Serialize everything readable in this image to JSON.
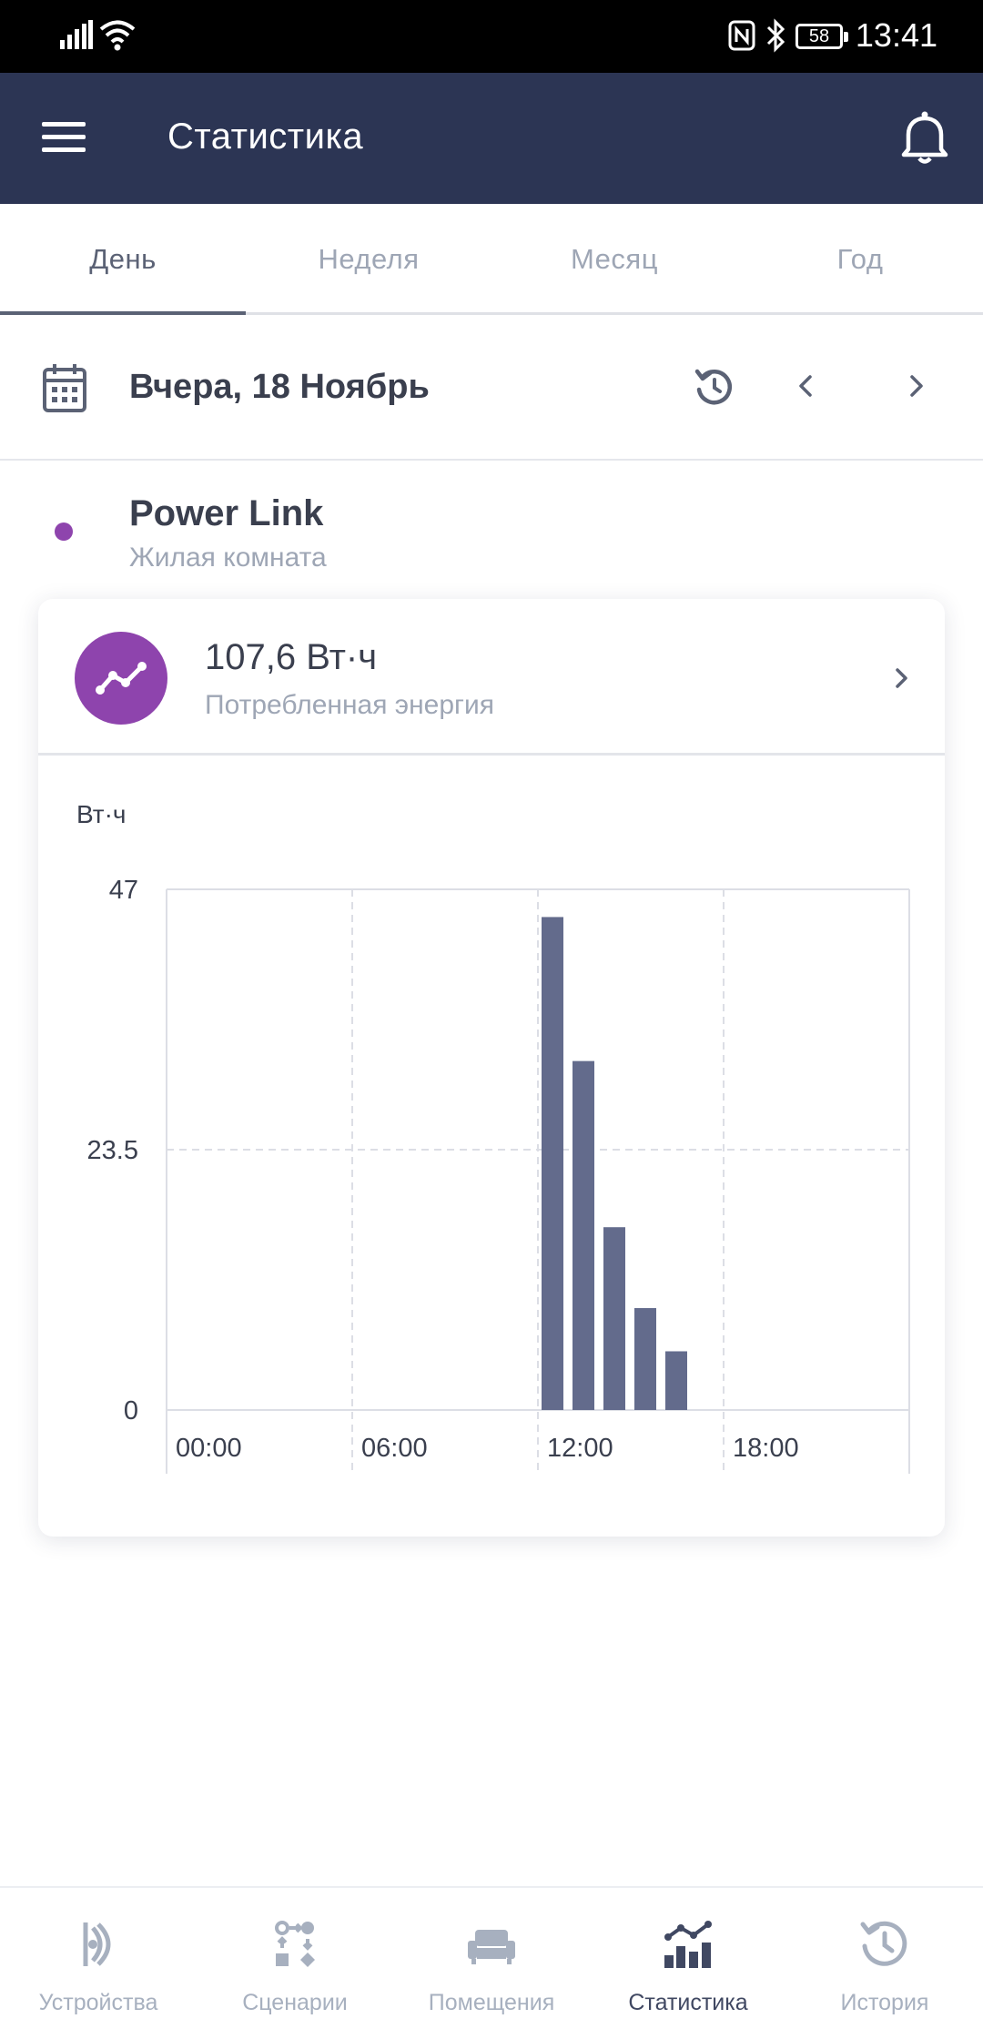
{
  "status_bar": {
    "time": "13:41",
    "battery": "58"
  },
  "app_bar": {
    "title": "Статистика"
  },
  "tabs": [
    {
      "label": "День",
      "active": true
    },
    {
      "label": "Неделя",
      "active": false
    },
    {
      "label": "Месяц",
      "active": false
    },
    {
      "label": "Год",
      "active": false
    }
  ],
  "date_nav": {
    "date": "Вчера, 18 Ноябрь"
  },
  "device": {
    "name": "Power Link",
    "room": "Жилая комната",
    "dot_color": "#8e44ad"
  },
  "summary": {
    "value": "107,6 Вт·ч",
    "caption": "Потребленная энергия",
    "icon": "trend-line-icon",
    "icon_bg": "#8e44ad"
  },
  "chart_data": {
    "type": "bar",
    "ylabel": "Вт·ч",
    "ylim": [
      0,
      47
    ],
    "yticks": [
      "47",
      "23.5",
      "0"
    ],
    "xticks": [
      "00:00",
      "06:00",
      "12:00",
      "18:00"
    ],
    "x": [
      "12:00",
      "13:00",
      "14:00",
      "15:00",
      "16:00"
    ],
    "values": [
      44.5,
      31.5,
      16.5,
      9.2,
      5.3
    ],
    "bar_color": "#636b8c",
    "grid": true
  },
  "bottom_nav": [
    {
      "label": "Устройства",
      "icon": "devices-icon",
      "active": false
    },
    {
      "label": "Сценарии",
      "icon": "scenarios-icon",
      "active": false
    },
    {
      "label": "Помещения",
      "icon": "rooms-sofa-icon",
      "active": false
    },
    {
      "label": "Статистика",
      "icon": "statistics-icon",
      "active": true
    },
    {
      "label": "История",
      "icon": "history-icon",
      "active": false
    }
  ]
}
